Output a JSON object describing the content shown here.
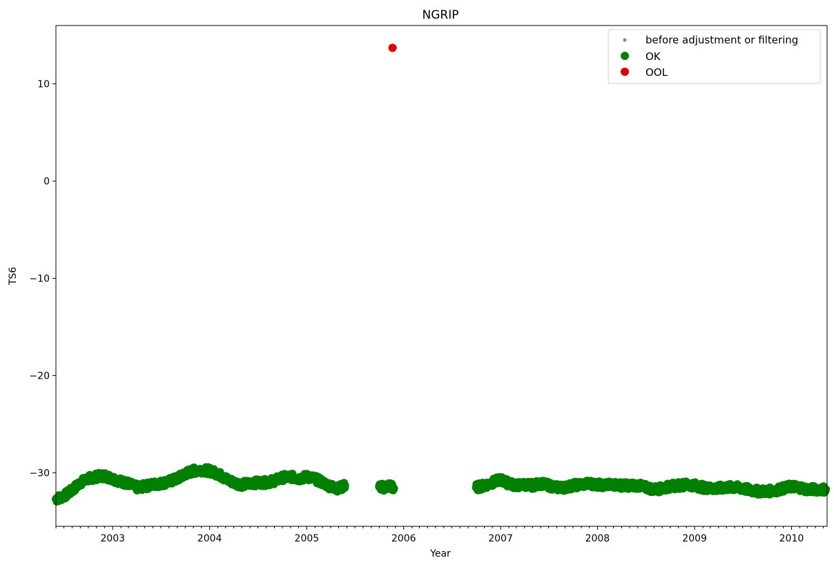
{
  "chart_data": {
    "type": "scatter",
    "title": "NGRIP",
    "xlabel": "Year",
    "ylabel": "TS6",
    "xlim": [
      "2002-06-01",
      "2010-05-15"
    ],
    "ylim": [
      -35.5,
      16
    ],
    "x_ticks": [
      "2003",
      "2004",
      "2005",
      "2006",
      "2007",
      "2008",
      "2009",
      "2010"
    ],
    "y_ticks": [
      -30,
      -20,
      -10,
      0,
      10
    ],
    "y_tick_labels": [
      "−30",
      "−20",
      "−10",
      "0",
      "10"
    ],
    "legend": {
      "placement": "top-right",
      "entries": [
        {
          "label": "before adjustment or filtering",
          "color": "#808080",
          "marker": "small-dot"
        },
        {
          "label": "OK",
          "color": "#008000",
          "marker": "dot"
        },
        {
          "label": "OOL",
          "color": "#e00000",
          "marker": "dot"
        }
      ]
    },
    "series": [
      {
        "name": "OK",
        "color": "#008000",
        "points": [
          [
            "2002-06-01",
            -32.7
          ],
          [
            "2002-07-01",
            -32.4
          ],
          [
            "2002-08-01",
            -31.8
          ],
          [
            "2002-09-01",
            -31.0
          ],
          [
            "2002-10-01",
            -30.6
          ],
          [
            "2002-11-01",
            -30.4
          ],
          [
            "2002-12-01",
            -30.3
          ],
          [
            "2003-01-01",
            -30.6
          ],
          [
            "2003-02-01",
            -30.9
          ],
          [
            "2003-03-01",
            -31.1
          ],
          [
            "2003-04-01",
            -31.5
          ],
          [
            "2003-05-01",
            -31.4
          ],
          [
            "2003-06-01",
            -31.2
          ],
          [
            "2003-07-01",
            -31.1
          ],
          [
            "2003-08-01",
            -30.9
          ],
          [
            "2003-09-01",
            -30.6
          ],
          [
            "2003-10-01",
            -30.1
          ],
          [
            "2003-11-01",
            -29.8
          ],
          [
            "2003-12-01",
            -29.7
          ],
          [
            "2004-01-01",
            -29.8
          ],
          [
            "2004-02-01",
            -30.1
          ],
          [
            "2004-03-01",
            -30.6
          ],
          [
            "2004-04-01",
            -31.0
          ],
          [
            "2004-05-01",
            -31.2
          ],
          [
            "2004-06-01",
            -31.1
          ],
          [
            "2004-07-01",
            -31.0
          ],
          [
            "2004-08-01",
            -31.0
          ],
          [
            "2004-09-01",
            -30.8
          ],
          [
            "2004-10-01",
            -30.5
          ],
          [
            "2004-11-01",
            -30.4
          ],
          [
            "2004-12-01",
            -30.6
          ],
          [
            "2005-01-01",
            -30.4
          ],
          [
            "2005-02-01",
            -30.6
          ],
          [
            "2005-03-01",
            -31.0
          ],
          [
            "2005-04-01",
            -31.4
          ],
          [
            "2005-05-01",
            -31.6
          ],
          [
            "2005-05-25",
            -31.3
          ],
          [
            "2005-10-01",
            -31.4
          ],
          [
            "2005-10-20",
            -31.5
          ],
          [
            "2005-11-10",
            -31.3
          ],
          [
            "2005-11-25",
            -31.6
          ],
          [
            "2006-10-01",
            -31.5
          ],
          [
            "2006-11-01",
            -31.3
          ],
          [
            "2006-12-01",
            -31.0
          ],
          [
            "2007-01-01",
            -30.7
          ],
          [
            "2007-02-01",
            -31.1
          ],
          [
            "2007-03-01",
            -31.3
          ],
          [
            "2007-04-01",
            -31.2
          ],
          [
            "2007-05-01",
            -31.3
          ],
          [
            "2007-06-01",
            -31.1
          ],
          [
            "2007-07-01",
            -31.3
          ],
          [
            "2007-08-01",
            -31.5
          ],
          [
            "2007-09-01",
            -31.5
          ],
          [
            "2007-10-01",
            -31.3
          ],
          [
            "2007-11-01",
            -31.2
          ],
          [
            "2007-12-01",
            -31.1
          ],
          [
            "2008-01-01",
            -31.2
          ],
          [
            "2008-02-01",
            -31.3
          ],
          [
            "2008-03-01",
            -31.2
          ],
          [
            "2008-04-01",
            -31.3
          ],
          [
            "2008-05-01",
            -31.3
          ],
          [
            "2008-06-01",
            -31.3
          ],
          [
            "2008-07-01",
            -31.5
          ],
          [
            "2008-08-01",
            -31.7
          ],
          [
            "2008-09-01",
            -31.6
          ],
          [
            "2008-10-01",
            -31.4
          ],
          [
            "2008-11-01",
            -31.3
          ],
          [
            "2008-12-01",
            -31.2
          ],
          [
            "2009-01-01",
            -31.3
          ],
          [
            "2009-02-01",
            -31.5
          ],
          [
            "2009-03-01",
            -31.6
          ],
          [
            "2009-04-01",
            -31.6
          ],
          [
            "2009-05-01",
            -31.5
          ],
          [
            "2009-06-01",
            -31.5
          ],
          [
            "2009-07-01",
            -31.6
          ],
          [
            "2009-08-01",
            -31.8
          ],
          [
            "2009-09-01",
            -31.9
          ],
          [
            "2009-10-01",
            -31.9
          ],
          [
            "2009-11-01",
            -31.8
          ],
          [
            "2009-12-01",
            -31.6
          ],
          [
            "2010-01-01",
            -31.4
          ],
          [
            "2010-02-01",
            -31.5
          ],
          [
            "2010-03-01",
            -31.7
          ],
          [
            "2010-04-01",
            -31.7
          ],
          [
            "2010-05-10",
            -31.7
          ]
        ]
      },
      {
        "name": "OOL",
        "color": "#e00000",
        "points": [
          [
            "2005-11-20",
            13.7
          ]
        ]
      }
    ],
    "grid": false
  }
}
